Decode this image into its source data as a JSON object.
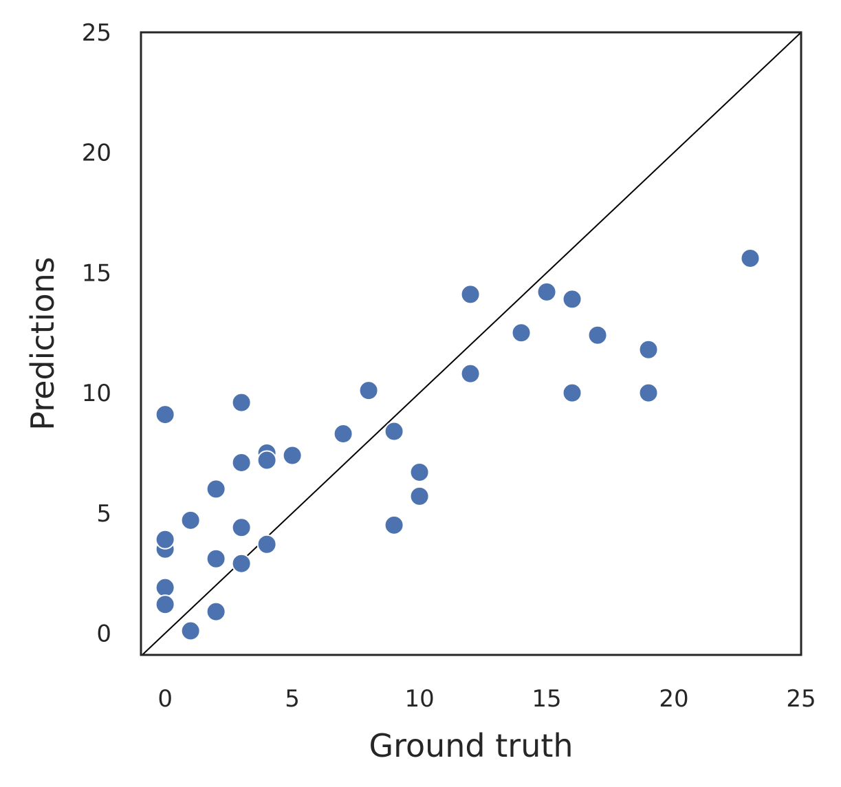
{
  "chart_data": {
    "type": "scatter",
    "xlabel": "Ground truth",
    "ylabel": "Predictions",
    "xlim": [
      -0.95,
      25
    ],
    "ylim": [
      -0.9,
      25
    ],
    "xticks": [
      0,
      5,
      10,
      15,
      20,
      25
    ],
    "yticks": [
      0,
      5,
      10,
      15,
      20,
      25
    ],
    "x_tick_labels": [
      "0",
      "5",
      "10",
      "15",
      "20",
      "25"
    ],
    "y_tick_labels": [
      "0",
      "5",
      "10",
      "15",
      "20",
      "25"
    ],
    "grid": false,
    "reference_line": "y = x",
    "colors": {
      "points": "#4c72b0",
      "reference_line": "#000000",
      "frame": "#262626",
      "text": "#262626"
    },
    "points": [
      {
        "x": 0,
        "y": 9.1
      },
      {
        "x": 0,
        "y": 3.5
      },
      {
        "x": 0,
        "y": 3.9
      },
      {
        "x": 0,
        "y": 1.9
      },
      {
        "x": 0,
        "y": 1.2
      },
      {
        "x": 1,
        "y": 4.7
      },
      {
        "x": 1,
        "y": 0.1
      },
      {
        "x": 2,
        "y": 6.0
      },
      {
        "x": 2,
        "y": 3.1
      },
      {
        "x": 2,
        "y": 0.9
      },
      {
        "x": 3,
        "y": 9.6
      },
      {
        "x": 3,
        "y": 7.1
      },
      {
        "x": 3,
        "y": 4.4
      },
      {
        "x": 3,
        "y": 2.9
      },
      {
        "x": 4,
        "y": 7.5
      },
      {
        "x": 4,
        "y": 7.2
      },
      {
        "x": 4,
        "y": 3.7
      },
      {
        "x": 5,
        "y": 7.4
      },
      {
        "x": 7,
        "y": 8.3
      },
      {
        "x": 8,
        "y": 10.1
      },
      {
        "x": 9,
        "y": 8.4
      },
      {
        "x": 9,
        "y": 4.5
      },
      {
        "x": 10,
        "y": 6.7
      },
      {
        "x": 10,
        "y": 5.7
      },
      {
        "x": 12,
        "y": 14.1
      },
      {
        "x": 12,
        "y": 10.8
      },
      {
        "x": 14,
        "y": 12.5
      },
      {
        "x": 15,
        "y": 14.2
      },
      {
        "x": 16,
        "y": 13.9
      },
      {
        "x": 16,
        "y": 10.0
      },
      {
        "x": 17,
        "y": 12.4
      },
      {
        "x": 19,
        "y": 11.8
      },
      {
        "x": 19,
        "y": 10.0
      },
      {
        "x": 23,
        "y": 15.6
      }
    ]
  }
}
